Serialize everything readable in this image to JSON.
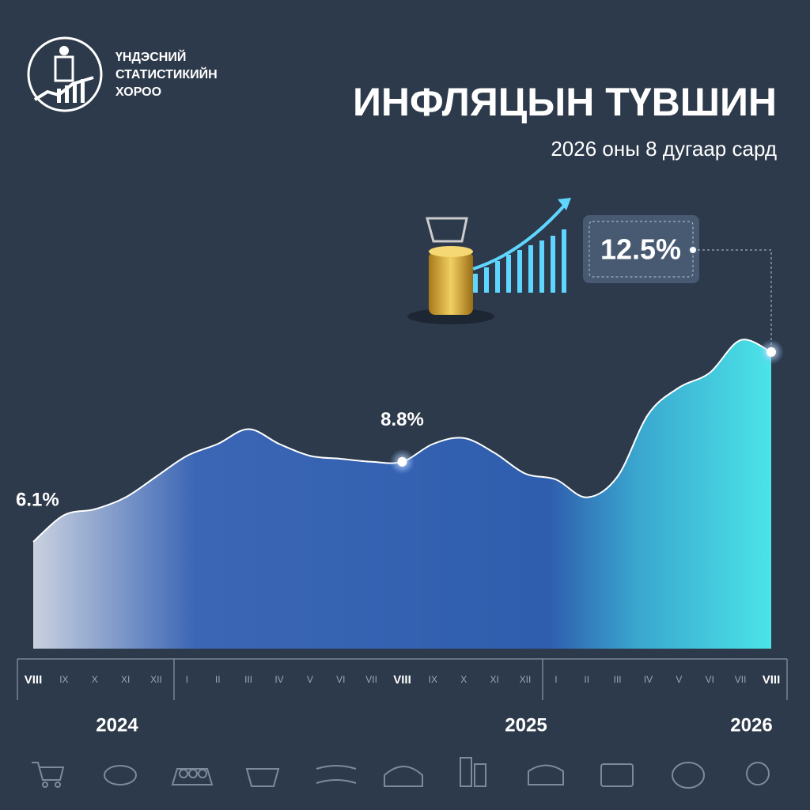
{
  "org": {
    "lines": [
      "ҮНДЭСНИЙ",
      "СТАТИСТИКИЙН",
      "ХОРОО"
    ]
  },
  "chart_data": {
    "type": "area",
    "title": "ИНФЛЯЦЫН ТҮВШИН",
    "subtitle": "2026 оны 8 дугаар сард",
    "categories": [
      "VIII",
      "IX",
      "X",
      "XI",
      "XII",
      "I",
      "II",
      "III",
      "IV",
      "V",
      "VI",
      "VII",
      "VIII",
      "IX",
      "X",
      "XI",
      "XII",
      "I",
      "II",
      "III",
      "IV",
      "V",
      "VI",
      "VII",
      "VIII"
    ],
    "values": [
      6.1,
      7.0,
      7.2,
      7.6,
      8.3,
      9.0,
      9.4,
      9.9,
      9.4,
      9.0,
      8.9,
      8.8,
      8.8,
      9.4,
      9.6,
      9.1,
      8.4,
      8.2,
      7.6,
      8.3,
      10.4,
      11.3,
      11.8,
      12.9,
      12.5
    ],
    "value_labels": [
      "6.1%",
      null,
      null,
      null,
      null,
      null,
      null,
      null,
      null,
      null,
      null,
      null,
      "8.8%",
      null,
      null,
      null,
      null,
      null,
      null,
      null,
      null,
      null,
      null,
      null,
      "12.5%"
    ],
    "years": [
      "2024",
      "2025",
      "2026"
    ],
    "ylim": [
      2.5,
      18.5
    ],
    "line_color": "#ffffff"
  }
}
